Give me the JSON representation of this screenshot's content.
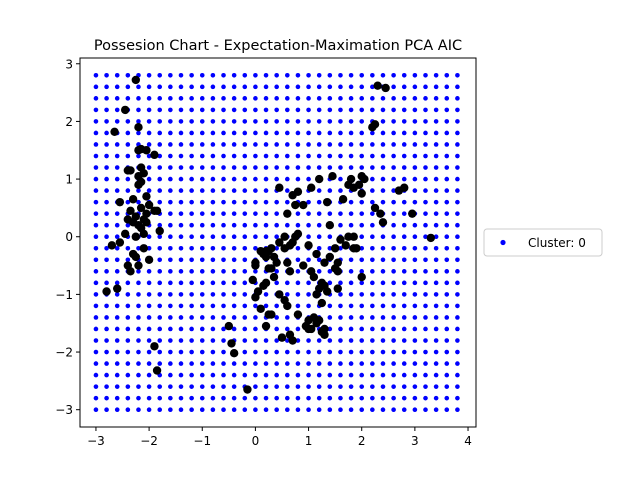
{
  "chart_data": {
    "type": "scatter",
    "title": "Possesion Chart - Expectation-Maximation PCA AIC",
    "xlabel": "",
    "ylabel": "",
    "xlim": [
      -3.3,
      4.15
    ],
    "ylim": [
      -3.3,
      3.1
    ],
    "xticks": [
      -3,
      -2,
      -1,
      0,
      1,
      2,
      3,
      4
    ],
    "yticks": [
      -3,
      -2,
      -1,
      0,
      1,
      2,
      3
    ],
    "xtick_labels": [
      "−3",
      "−2",
      "−1",
      "0",
      "1",
      "2",
      "3",
      "4"
    ],
    "ytick_labels": [
      "−3",
      "−2",
      "−1",
      "0",
      "1",
      "2",
      "3"
    ],
    "grid": false,
    "legend_position": "right-outside",
    "series": [
      {
        "name": "Cluster: 0",
        "color": "#0000ff",
        "marker": "grid-point",
        "grid": {
          "x_start": -3.0,
          "x_stop": 3.8,
          "y_start": -3.0,
          "y_stop": 2.8,
          "step": 0.2
        }
      },
      {
        "color": "#000000",
        "marker": "data-point",
        "x": [
          -2.25,
          -2.45,
          -2.2,
          -2.65,
          -2.15,
          -2.2,
          -2.05,
          -1.9,
          -2.15,
          -2.4,
          -2.35,
          -2.2,
          -2.1,
          -2.15,
          -2.2,
          -2.05,
          -2.3,
          -2.55,
          -2.0,
          -2.15,
          -1.9,
          -1.85,
          -2.35,
          -2.05,
          -2.25,
          -2.1,
          -2.4,
          -2.3,
          -2.2,
          -2.15,
          -1.8,
          -2.05,
          -2.1,
          -2.25,
          -2.45,
          -2.55,
          -2.7,
          -2.3,
          -2.1,
          -2.25,
          -2.0,
          -2.2,
          -2.4,
          -2.35,
          -2.6,
          -2.8,
          -1.85,
          2.3,
          2.45,
          2.25,
          2.2,
          -0.5,
          -0.45,
          -0.4,
          -0.15,
          -1.9,
          -0.05,
          0.0,
          0.2,
          0.3,
          0.15,
          0.4,
          0.3,
          0.55,
          0.45,
          0.65,
          0.75,
          0.8,
          0.55,
          0.7,
          0.25,
          0.35,
          0.6,
          0.65,
          0.9,
          1.0,
          1.15,
          1.05,
          1.1,
          1.25,
          1.2,
          1.35,
          1.5,
          1.3,
          1.4,
          1.55,
          1.15,
          1.25,
          1.2,
          1.1,
          1.0,
          1.3,
          1.5,
          1.55,
          1.6,
          1.7,
          1.75,
          1.85,
          1.9,
          2.0,
          2.05,
          1.95,
          1.85,
          2.0,
          2.25,
          2.35,
          2.4,
          2.7,
          2.8,
          2.95,
          3.3,
          0.45,
          0.7,
          0.8,
          0.9,
          1.05,
          1.2,
          1.35,
          1.45,
          1.65,
          1.75,
          1.8,
          2.0,
          0.1,
          0.2,
          0.0,
          0.25,
          0.35,
          0.15,
          0.45,
          0.55,
          0.6,
          0.8,
          1.0,
          1.15,
          1.3,
          0.95,
          1.05,
          1.25,
          0.3,
          0.5,
          0.7,
          0.1,
          0.2,
          0.25,
          0.05,
          0.0,
          0.65,
          1.3,
          1.55,
          1.85,
          1.4,
          0.2,
          0.6,
          0.75
        ],
        "y": [
          2.72,
          2.2,
          1.9,
          1.82,
          1.52,
          1.5,
          1.5,
          1.42,
          1.2,
          1.15,
          1.15,
          1.05,
          1.1,
          0.95,
          0.9,
          0.7,
          0.65,
          0.6,
          0.55,
          0.5,
          0.45,
          0.45,
          0.45,
          0.4,
          0.35,
          0.3,
          0.3,
          0.25,
          0.2,
          0.15,
          0.1,
          0.25,
          0.05,
          0.0,
          0.05,
          -0.1,
          -0.15,
          -0.3,
          -0.2,
          -0.35,
          -0.4,
          -0.5,
          -0.5,
          -0.6,
          -0.9,
          -0.95,
          -2.32,
          2.62,
          2.58,
          1.95,
          1.9,
          -1.55,
          -1.85,
          -2.02,
          -2.65,
          -1.9,
          -0.75,
          -0.45,
          -0.25,
          -0.2,
          -0.3,
          -0.45,
          -0.55,
          -0.2,
          -0.1,
          -0.15,
          0.0,
          0.05,
          0.0,
          -0.1,
          -0.25,
          -0.35,
          -0.45,
          -0.6,
          -0.5,
          -0.15,
          -0.3,
          -0.6,
          -0.7,
          -0.8,
          -0.9,
          -0.95,
          -0.55,
          -0.45,
          -0.35,
          -0.45,
          -1.0,
          -1.15,
          -1.45,
          -1.4,
          -1.6,
          -1.7,
          -0.2,
          -0.9,
          -0.05,
          -0.15,
          0.0,
          -0.2,
          -0.2,
          -0.7,
          1.0,
          0.9,
          0.85,
          0.75,
          0.5,
          0.4,
          0.25,
          0.8,
          0.85,
          0.4,
          -0.02,
          0.85,
          0.72,
          0.78,
          0.55,
          0.85,
          1.0,
          0.6,
          1.05,
          0.65,
          0.9,
          1.0,
          1.05,
          -0.25,
          -0.35,
          -0.5,
          -0.55,
          -0.7,
          -0.85,
          -1.0,
          -1.1,
          -1.2,
          -1.35,
          -1.45,
          -1.5,
          -1.6,
          -1.55,
          -1.6,
          -1.65,
          -1.35,
          -1.75,
          -1.8,
          -1.25,
          -1.55,
          -1.35,
          -0.95,
          -1.05,
          -1.7,
          -0.85,
          -0.6,
          0.0,
          0.2,
          -0.8,
          0.4,
          0.55
        ]
      }
    ]
  }
}
